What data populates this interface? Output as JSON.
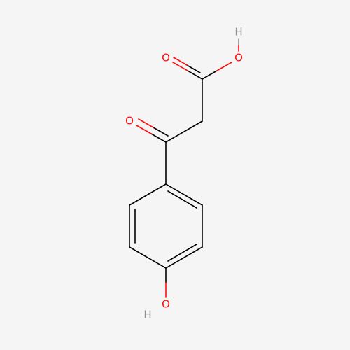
{
  "atoms": [
    {
      "label": "H"
    },
    {
      "label": "O"
    },
    {
      "label": "O"
    },
    {
      "label": "O"
    },
    {
      "label": "O"
    },
    {
      "label": "H"
    }
  ]
}
